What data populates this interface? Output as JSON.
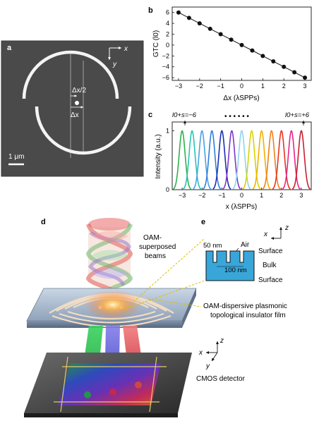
{
  "panels": {
    "a": {
      "label": "a",
      "axis_x": "x",
      "axis_y": "y",
      "half_dx": "Δx/2",
      "dx": "Δx",
      "scale_bar": "1 μm"
    },
    "b": {
      "label": "b"
    },
    "c": {
      "label": "c",
      "left_annot": "l0+s=−6",
      "right_annot": "l0+s=+6",
      "dots": "• • • • • •"
    },
    "d": {
      "label": "d",
      "beams": [
        "OAM-",
        "superposed",
        "beams"
      ],
      "film": [
        "OAM-dispersive plasmonic",
        "topological insulator film"
      ],
      "detector": "CMOS detector",
      "axis_x": "x",
      "axis_y": "y",
      "axis_z": "z"
    },
    "e": {
      "label": "e",
      "axis_x": "x",
      "axis_z": "z",
      "air": "Air",
      "nm50": "50 nm",
      "nm100": "100 nm",
      "surface_top": "Surface",
      "bulk": "Bulk",
      "surface_bottom": "Surface"
    }
  },
  "chart_data": [
    {
      "type": "line",
      "panel": "b",
      "x": [
        -3,
        -2.5,
        -2,
        -1.5,
        -1,
        -0.5,
        0,
        0.5,
        1,
        1.5,
        2,
        2.5,
        3
      ],
      "y": [
        6,
        5,
        4,
        3,
        2,
        1,
        0,
        -1,
        -2,
        -3,
        -4,
        -5,
        -6
      ],
      "xlabel": "Δx (λSPPs)",
      "ylabel": "GTC (l0)",
      "xlim": [
        -3.3,
        3.3
      ],
      "ylim": [
        -6.5,
        7
      ],
      "xticks": [
        "−3",
        "−2",
        "−1",
        "0",
        "1",
        "2",
        "3"
      ],
      "yticks": [
        "6",
        "4",
        "2",
        "0",
        "−2",
        "−4",
        "−6"
      ],
      "marker": "filled-circle",
      "color": "#111111"
    },
    {
      "type": "line",
      "panel": "c",
      "x_centers": [
        -3,
        -2.5,
        -2,
        -1.5,
        -1,
        -0.5,
        0,
        0.5,
        1,
        1.5,
        2,
        2.5,
        3
      ],
      "peak": 1,
      "fwhm": 0.35,
      "colors": [
        "#2db24a",
        "#27c4b5",
        "#4aa0e6",
        "#2e7fd8",
        "#1b2fae",
        "#7b38c8",
        "#8fd3ee",
        "#d6d300",
        "#f0b000",
        "#ef7f1a",
        "#e8341c",
        "#e8248c",
        "#c91e2e"
      ],
      "xlabel": "x (λSPPs)",
      "ylabel": "Intensity (a.u.)",
      "xlim": [
        -3.5,
        3.5
      ],
      "ylim": [
        0,
        1.15
      ],
      "xticks": [
        "−3",
        "−2",
        "−1",
        "0",
        "1",
        "2",
        "3"
      ],
      "yticks": [
        "0",
        "1"
      ]
    }
  ]
}
